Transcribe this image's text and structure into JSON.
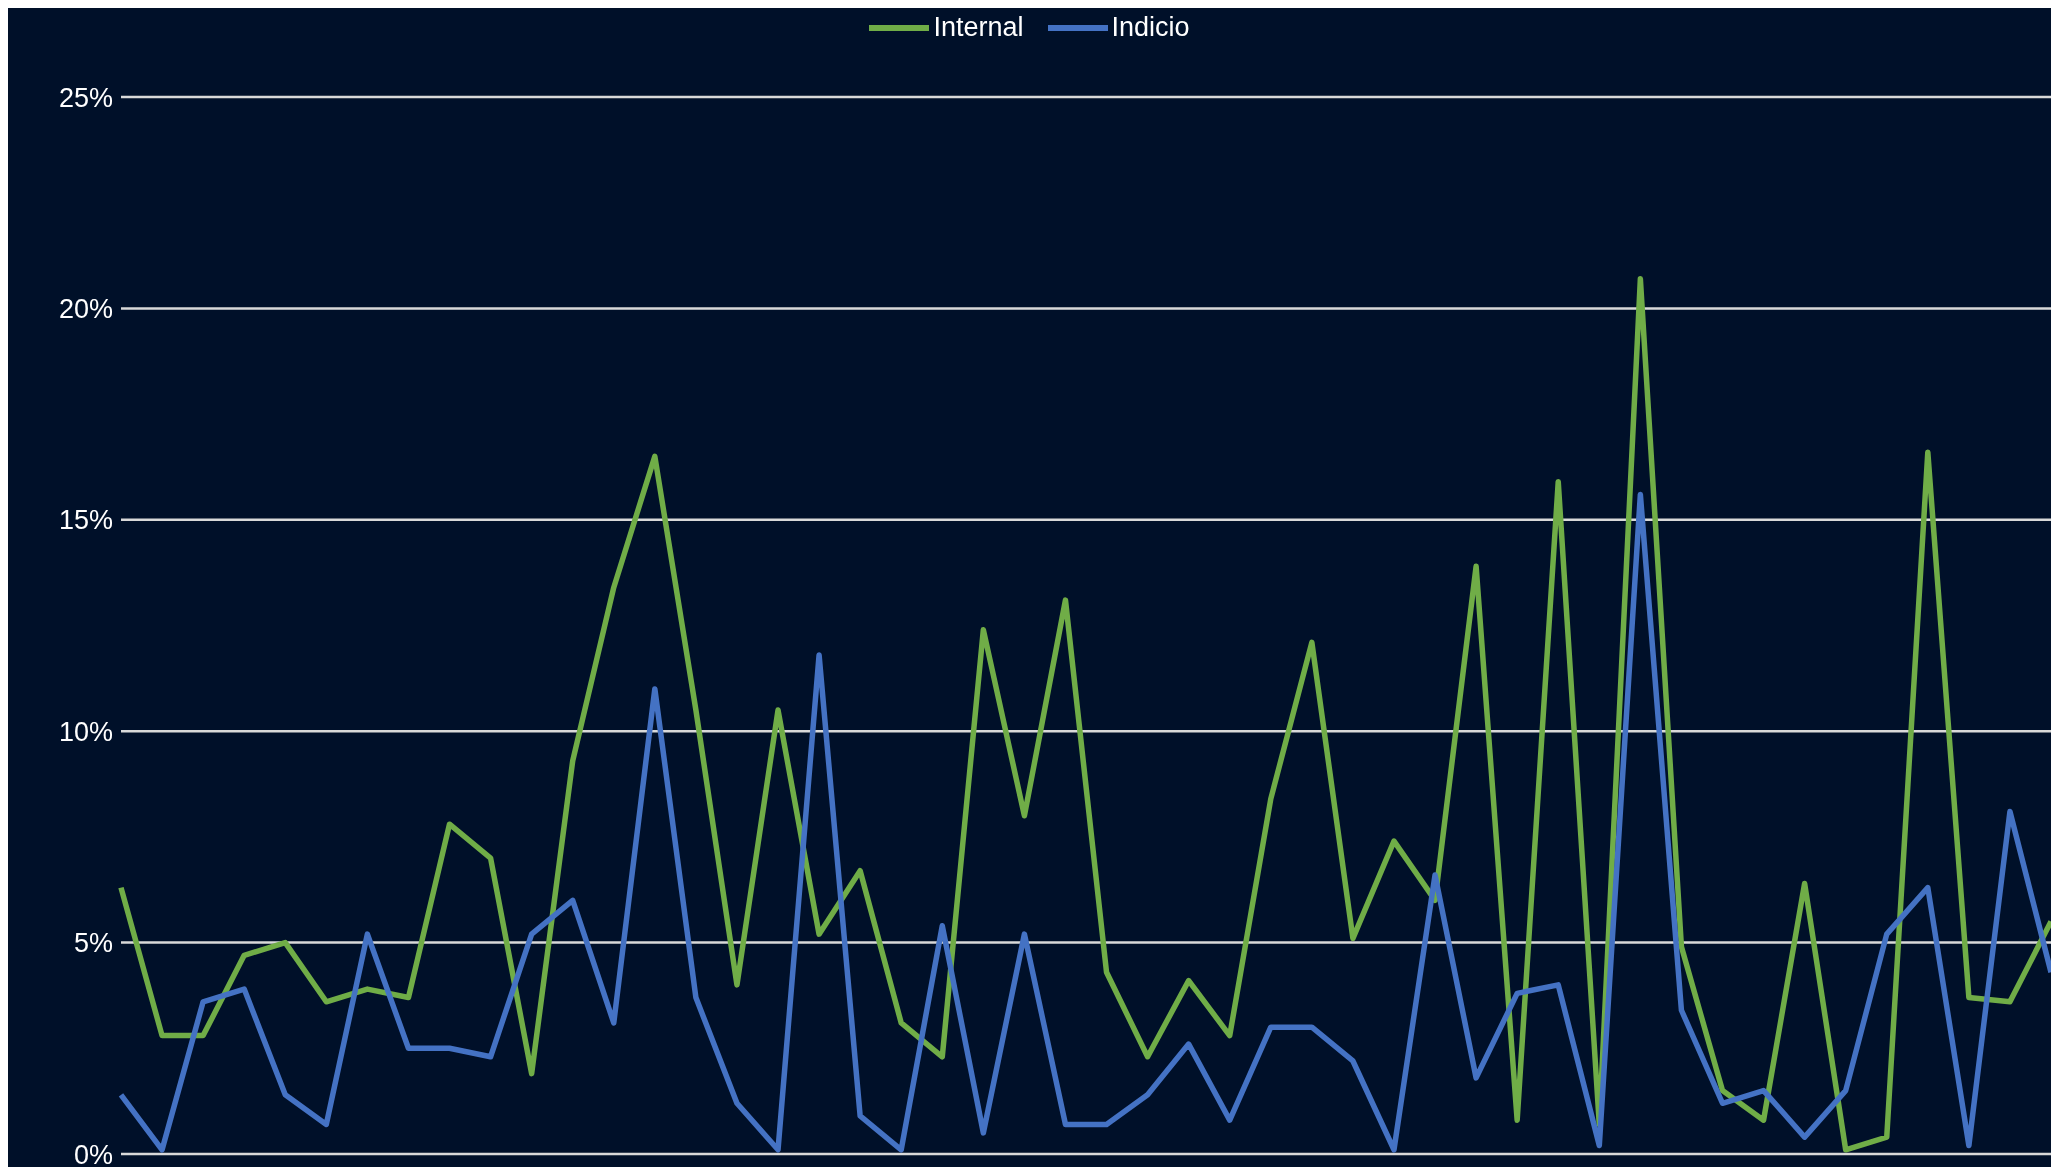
{
  "chart_data": {
    "type": "line",
    "categories": [
      null,
      null,
      null,
      null,
      null,
      null,
      null,
      null,
      null,
      null,
      null,
      null,
      null,
      null,
      null,
      null,
      null,
      null,
      null,
      null,
      null,
      null,
      null,
      null,
      null,
      null,
      null,
      null,
      null,
      null,
      null,
      null,
      null,
      null,
      null,
      null,
      null,
      null,
      null,
      null,
      null,
      null,
      null,
      null,
      null,
      null,
      null,
      null
    ],
    "series": [
      {
        "name": "Internal",
        "color": "#70ad47",
        "values": [
          6.3,
          2.8,
          2.8,
          4.7,
          5.0,
          3.6,
          3.9,
          3.7,
          7.8,
          7.0,
          1.9,
          9.3,
          13.4,
          16.5,
          10.5,
          4.0,
          10.5,
          5.2,
          6.7,
          3.1,
          2.3,
          12.4,
          8.0,
          13.1,
          4.3,
          2.3,
          4.1,
          2.8,
          8.4,
          12.1,
          5.1,
          7.4,
          6.0,
          13.9,
          0.8,
          15.9,
          0.7,
          20.7,
          4.9,
          1.5,
          0.8,
          6.4,
          0.1,
          0.4,
          16.6,
          3.7,
          3.6,
          5.5
        ]
      },
      {
        "name": "Indicio",
        "color": "#4472c4",
        "values": [
          1.4,
          0.1,
          3.6,
          3.9,
          1.4,
          0.7,
          5.2,
          2.5,
          2.5,
          2.3,
          5.2,
          6.0,
          3.1,
          11.0,
          3.7,
          1.2,
          0.1,
          11.8,
          0.9,
          0.1,
          5.4,
          0.5,
          5.2,
          0.7,
          0.7,
          1.4,
          2.6,
          0.8,
          3.0,
          3.0,
          2.2,
          0.1,
          6.6,
          1.8,
          3.8,
          4.0,
          0.2,
          15.6,
          3.4,
          1.2,
          1.5,
          0.4,
          1.5,
          5.2,
          6.3,
          0.2,
          8.1,
          4.3
        ]
      }
    ],
    "ylim": [
      0,
      25
    ],
    "yticks": [
      {
        "value": 0,
        "label": "0%"
      },
      {
        "value": 5,
        "label": "5%"
      },
      {
        "value": 10,
        "label": "10%"
      },
      {
        "value": 15,
        "label": "15%"
      },
      {
        "value": 20,
        "label": "20%"
      },
      {
        "value": 25,
        "label": "25%"
      }
    ],
    "grid": "y",
    "legend": "top",
    "marker": "none",
    "line_style": "solid"
  }
}
